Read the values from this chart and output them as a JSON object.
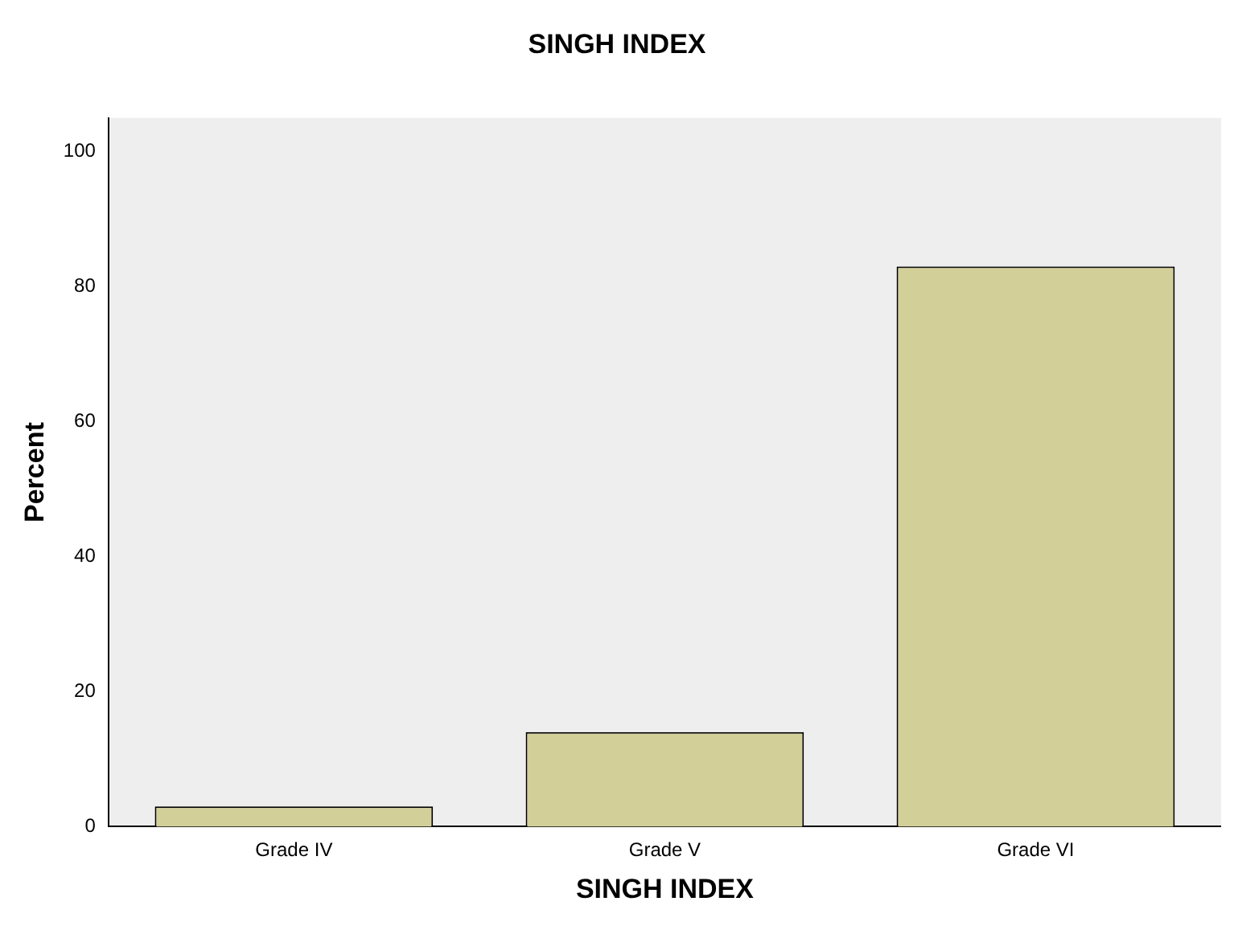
{
  "chart_data": {
    "type": "bar",
    "title": "SINGH INDEX",
    "xlabel": "SINGH INDEX",
    "ylabel": "Percent",
    "categories": [
      "Grade IV",
      "Grade V",
      "Grade VI"
    ],
    "values": [
      3,
      14,
      83
    ],
    "color": "#d3cf98",
    "ylim": [
      0,
      105
    ],
    "yticks": [
      0,
      20,
      40,
      60,
      80,
      100
    ],
    "grid": false,
    "legend": false
  }
}
